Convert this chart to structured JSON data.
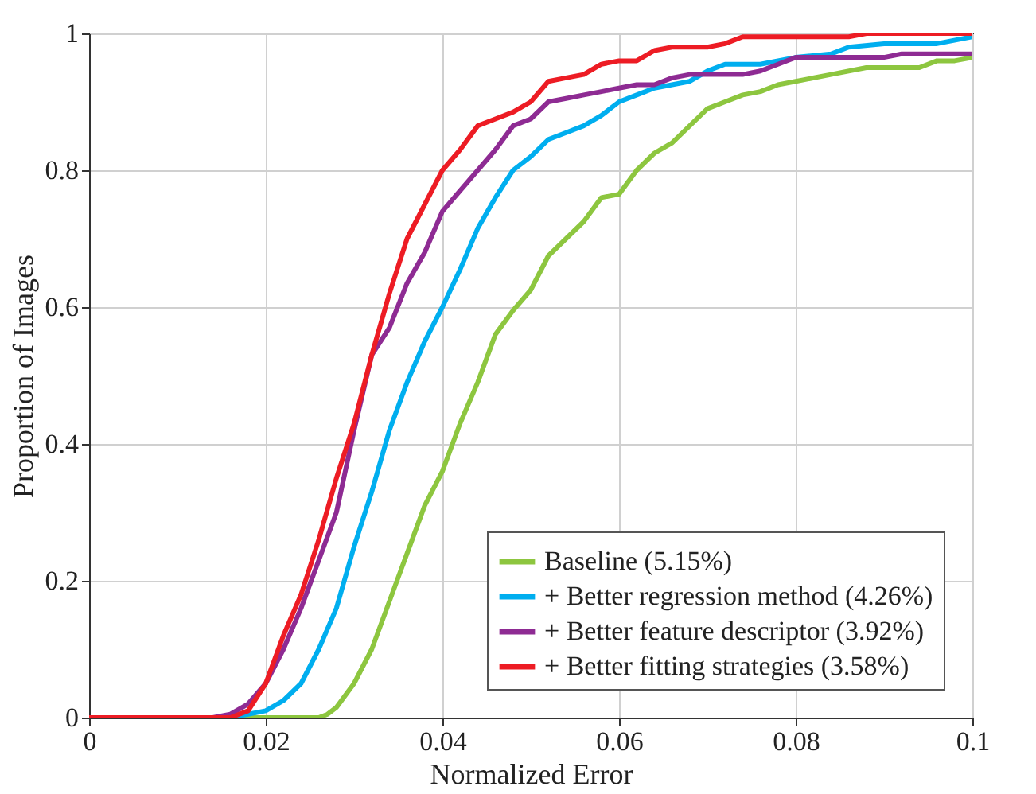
{
  "chart_data": {
    "type": "line",
    "xlabel": "Normalized Error",
    "ylabel": "Proportion of Images",
    "xlim": [
      0,
      0.1
    ],
    "xticks": [
      0,
      0.02,
      0.04,
      0.06,
      0.08,
      0.1
    ],
    "ylim": [
      0,
      1
    ],
    "yticks": [
      0,
      0.2,
      0.4,
      0.6,
      0.8,
      1
    ],
    "grid": true,
    "legend": "bottom right",
    "marker": "none",
    "line_style": "solid",
    "series": [
      {
        "name": "Baseline (5.15%)",
        "color": "#8dc63f",
        "x": [
          0,
          0.026,
          0.027,
          0.028,
          0.03,
          0.032,
          0.034,
          0.036,
          0.038,
          0.04,
          0.042,
          0.044,
          0.046,
          0.048,
          0.05,
          0.052,
          0.054,
          0.056,
          0.058,
          0.06,
          0.062,
          0.064,
          0.066,
          0.068,
          0.07,
          0.072,
          0.074,
          0.076,
          0.078,
          0.08,
          0.084,
          0.088,
          0.094,
          0.096,
          0.098,
          0.1
        ],
        "values": [
          0,
          0,
          0.005,
          0.015,
          0.05,
          0.1,
          0.17,
          0.24,
          0.31,
          0.36,
          0.43,
          0.49,
          0.56,
          0.595,
          0.625,
          0.675,
          0.7,
          0.725,
          0.76,
          0.765,
          0.8,
          0.825,
          0.84,
          0.865,
          0.89,
          0.9,
          0.91,
          0.915,
          0.925,
          0.93,
          0.94,
          0.95,
          0.95,
          0.96,
          0.96,
          0.965
        ]
      },
      {
        "name": "+ Better regression method (4.26%)",
        "color": "#00aeef",
        "x": [
          0,
          0.016,
          0.018,
          0.02,
          0.022,
          0.024,
          0.026,
          0.028,
          0.03,
          0.032,
          0.034,
          0.036,
          0.038,
          0.04,
          0.042,
          0.044,
          0.046,
          0.048,
          0.05,
          0.052,
          0.054,
          0.056,
          0.058,
          0.06,
          0.062,
          0.064,
          0.066,
          0.068,
          0.07,
          0.072,
          0.076,
          0.08,
          0.084,
          0.086,
          0.09,
          0.096,
          0.1
        ],
        "values": [
          0,
          0,
          0.005,
          0.01,
          0.025,
          0.05,
          0.1,
          0.16,
          0.25,
          0.33,
          0.42,
          0.49,
          0.55,
          0.6,
          0.655,
          0.715,
          0.76,
          0.8,
          0.82,
          0.845,
          0.855,
          0.865,
          0.88,
          0.9,
          0.91,
          0.92,
          0.925,
          0.93,
          0.945,
          0.955,
          0.955,
          0.965,
          0.97,
          0.98,
          0.985,
          0.985,
          0.995
        ]
      },
      {
        "name": "+ Better feature descriptor (3.92%)",
        "color": "#8e2b93",
        "x": [
          0,
          0.014,
          0.016,
          0.018,
          0.02,
          0.022,
          0.024,
          0.026,
          0.028,
          0.03,
          0.032,
          0.034,
          0.036,
          0.038,
          0.04,
          0.042,
          0.044,
          0.046,
          0.048,
          0.05,
          0.052,
          0.054,
          0.056,
          0.058,
          0.06,
          0.062,
          0.064,
          0.066,
          0.068,
          0.07,
          0.074,
          0.076,
          0.078,
          0.08,
          0.09,
          0.092,
          0.1
        ],
        "values": [
          0,
          0,
          0.005,
          0.02,
          0.05,
          0.1,
          0.16,
          0.23,
          0.3,
          0.42,
          0.53,
          0.57,
          0.635,
          0.68,
          0.74,
          0.77,
          0.8,
          0.83,
          0.865,
          0.875,
          0.9,
          0.905,
          0.91,
          0.915,
          0.92,
          0.925,
          0.925,
          0.935,
          0.94,
          0.94,
          0.94,
          0.945,
          0.955,
          0.965,
          0.965,
          0.97,
          0.97
        ]
      },
      {
        "name": "+ Better fitting strategies (3.58%)",
        "color": "#ed1c24",
        "x": [
          0,
          0.016,
          0.018,
          0.02,
          0.022,
          0.024,
          0.026,
          0.028,
          0.03,
          0.032,
          0.034,
          0.036,
          0.038,
          0.04,
          0.042,
          0.044,
          0.046,
          0.048,
          0.05,
          0.052,
          0.054,
          0.056,
          0.058,
          0.06,
          0.062,
          0.064,
          0.066,
          0.068,
          0.07,
          0.072,
          0.074,
          0.08,
          0.086,
          0.088,
          0.1
        ],
        "values": [
          0,
          0,
          0.01,
          0.05,
          0.12,
          0.18,
          0.26,
          0.35,
          0.43,
          0.53,
          0.62,
          0.7,
          0.75,
          0.8,
          0.83,
          0.865,
          0.875,
          0.885,
          0.9,
          0.93,
          0.935,
          0.94,
          0.955,
          0.96,
          0.96,
          0.975,
          0.98,
          0.98,
          0.98,
          0.985,
          0.995,
          0.995,
          0.995,
          1.0,
          1.0
        ]
      }
    ]
  }
}
